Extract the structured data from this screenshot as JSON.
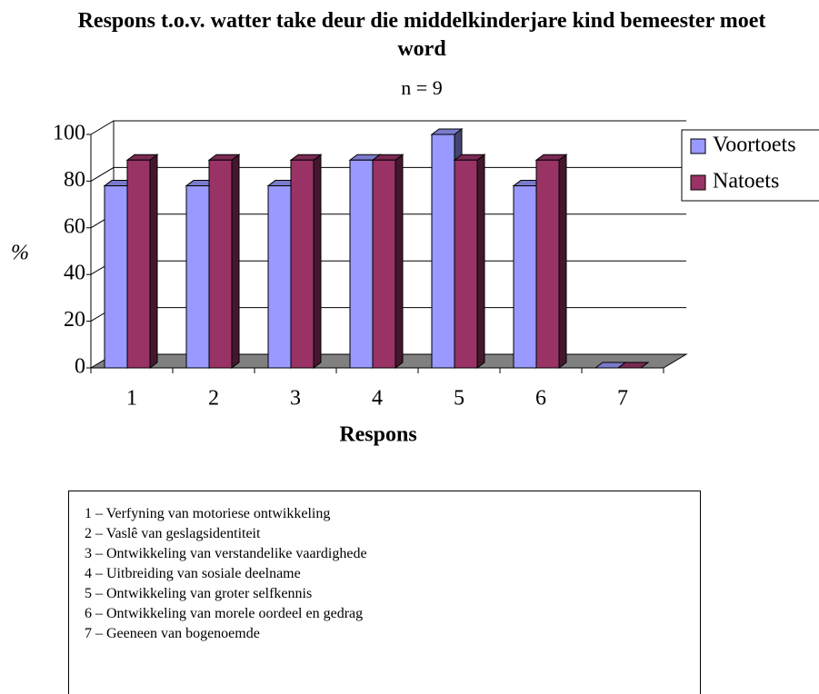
{
  "chart_data": {
    "type": "bar3d",
    "title": "Respons t.o.v. watter take deur die middelkinderjare kind bemeester moet word",
    "subtitle": "n = 9",
    "y_label": "%",
    "x_label": "Respons",
    "categories": [
      "1",
      "2",
      "3",
      "4",
      "5",
      "6",
      "7"
    ],
    "series": [
      {
        "name": "Voortoets",
        "color": "#9999ff",
        "values": [
          78,
          78,
          78,
          89,
          100,
          78,
          0
        ]
      },
      {
        "name": "Natoets",
        "color": "#993366",
        "values": [
          89,
          89,
          89,
          89,
          89,
          89,
          0
        ]
      }
    ],
    "ylim": [
      0,
      100
    ],
    "yticks": [
      0,
      20,
      40,
      60,
      80,
      100
    ],
    "grid": true,
    "legend": "right",
    "key": [
      "1 – Verfyning van motoriese ontwikkeling",
      "2 – Vaslê van geslagsidentiteit",
      "3 – Ontwikkeling van verstandelike vaardighede",
      "4 – Uitbreiding van sosiale deelname",
      "5 – Ontwikkeling van groter selfkennis",
      "6 – Ontwikkeling van morele oordeel en gedrag",
      "7 – Geeneen van bogenoemde"
    ]
  }
}
